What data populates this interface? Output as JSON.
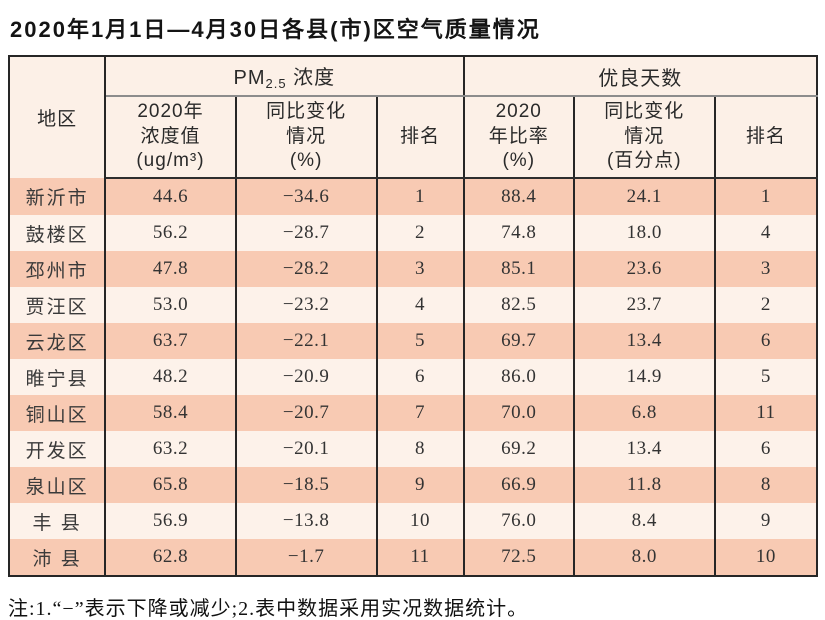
{
  "title": "2020年1月1日—4月30日各县(市)区空气质量情况",
  "table": {
    "headers": {
      "region": "地区",
      "group_pm": {
        "pre": "PM",
        "sub": "2.5",
        "post": " 浓度"
      },
      "group_good": "优良天数",
      "pm_value": "2020年\n浓度值\n(ug/m³)",
      "pm_change": "同比变化\n情况\n(%)",
      "pm_rank": "排名",
      "rate": "2020\n年比率\n(%)",
      "rate_change": "同比变化\n情况\n(百分点)",
      "rate_rank": "排名"
    },
    "rows": [
      {
        "region": "新沂市",
        "pm_value": "44.6",
        "pm_change": "−34.6",
        "pm_rank": "1",
        "rate": "88.4",
        "rate_change": "24.1",
        "rate_rank": "1"
      },
      {
        "region": "鼓楼区",
        "pm_value": "56.2",
        "pm_change": "−28.7",
        "pm_rank": "2",
        "rate": "74.8",
        "rate_change": "18.0",
        "rate_rank": "4"
      },
      {
        "region": "邳州市",
        "pm_value": "47.8",
        "pm_change": "−28.2",
        "pm_rank": "3",
        "rate": "85.1",
        "rate_change": "23.6",
        "rate_rank": "3"
      },
      {
        "region": "贾汪区",
        "pm_value": "53.0",
        "pm_change": "−23.2",
        "pm_rank": "4",
        "rate": "82.5",
        "rate_change": "23.7",
        "rate_rank": "2"
      },
      {
        "region": "云龙区",
        "pm_value": "63.7",
        "pm_change": "−22.1",
        "pm_rank": "5",
        "rate": "69.7",
        "rate_change": "13.4",
        "rate_rank": "6"
      },
      {
        "region": "睢宁县",
        "pm_value": "48.2",
        "pm_change": "−20.9",
        "pm_rank": "6",
        "rate": "86.0",
        "rate_change": "14.9",
        "rate_rank": "5"
      },
      {
        "region": "铜山区",
        "pm_value": "58.4",
        "pm_change": "−20.7",
        "pm_rank": "7",
        "rate": "70.0",
        "rate_change": "6.8",
        "rate_rank": "11"
      },
      {
        "region": "开发区",
        "pm_value": "63.2",
        "pm_change": "−20.1",
        "pm_rank": "8",
        "rate": "69.2",
        "rate_change": "13.4",
        "rate_rank": "6"
      },
      {
        "region": "泉山区",
        "pm_value": "65.8",
        "pm_change": "−18.5",
        "pm_rank": "9",
        "rate": "66.9",
        "rate_change": "11.8",
        "rate_rank": "8"
      },
      {
        "region": "丰 县",
        "pm_value": "56.9",
        "pm_change": "−13.8",
        "pm_rank": "10",
        "rate": "76.0",
        "rate_change": "8.4",
        "rate_rank": "9"
      },
      {
        "region": "沛 县",
        "pm_value": "62.8",
        "pm_change": "−1.7",
        "pm_rank": "11",
        "rate": "72.5",
        "rate_change": "8.0",
        "rate_rank": "10"
      }
    ]
  },
  "note": "注:1.“−”表示下降或减少;2.表中数据采用实况数据统计。",
  "colors": {
    "row_odd_bg": "#f8cab3",
    "row_even_bg": "#fdf2ea",
    "header_bg": "#fcf0e7",
    "border_dark": "#262626",
    "group_divider_gray": "#8c8c8c"
  }
}
